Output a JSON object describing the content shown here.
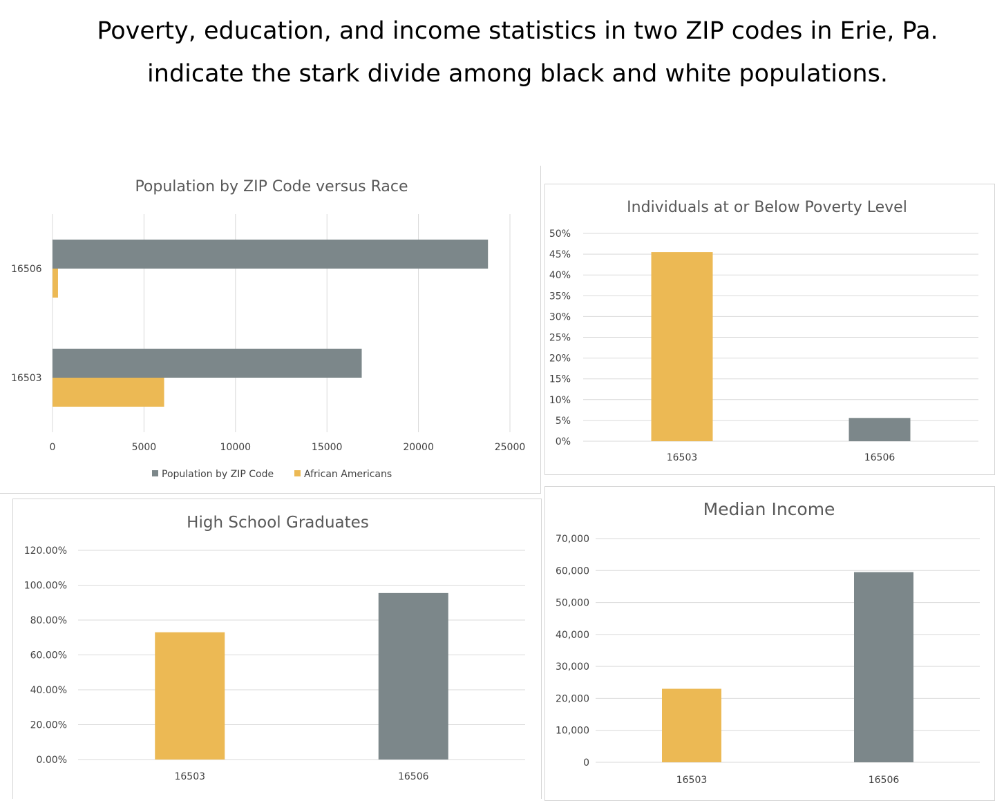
{
  "headline": "Poverty, education, and income statistics in two ZIP codes in Erie, Pa. indicate the stark divide among black and white populations.",
  "colors": {
    "gray": "#7c878a",
    "gold": "#ecb954",
    "grid": "#d9d9d9"
  },
  "chart_data": [
    {
      "type": "bar",
      "orientation": "horizontal",
      "title": "Population by ZIP Code versus Race",
      "categories": [
        "16506",
        "16503"
      ],
      "series": [
        {
          "name": "Population by ZIP Code",
          "values": [
            23800,
            16900
          ],
          "color": "#7c878a"
        },
        {
          "name": "African Americans",
          "values": [
            300,
            6100
          ],
          "color": "#ecb954"
        }
      ],
      "xlim": [
        0,
        25000
      ],
      "x_ticks": [
        "0",
        "5000",
        "10000",
        "15000",
        "20000",
        "25000"
      ],
      "legend": "bottom",
      "grid": true
    },
    {
      "type": "bar",
      "title": "Individuals at or Below Poverty Level",
      "categories": [
        "16503",
        "16506"
      ],
      "values": [
        0.455,
        0.056
      ],
      "colors": [
        "#ecb954",
        "#7c878a"
      ],
      "ylim": [
        0,
        0.5
      ],
      "y_ticks": [
        "0%",
        "5%",
        "10%",
        "15%",
        "20%",
        "25%",
        "30%",
        "35%",
        "40%",
        "45%",
        "50%"
      ],
      "grid": true
    },
    {
      "type": "bar",
      "title": "High School Graduates",
      "categories": [
        "16503",
        "16506"
      ],
      "values": [
        0.73,
        0.955
      ],
      "colors": [
        "#ecb954",
        "#7c878a"
      ],
      "ylim": [
        0,
        1.2
      ],
      "y_ticks": [
        "0.00%",
        "20.00%",
        "40.00%",
        "60.00%",
        "80.00%",
        "100.00%",
        "120.00%"
      ],
      "grid": true
    },
    {
      "type": "bar",
      "title": "Median Income",
      "categories": [
        "16503",
        "16506"
      ],
      "values": [
        23000,
        59500
      ],
      "colors": [
        "#ecb954",
        "#7c878a"
      ],
      "ylim": [
        0,
        70000
      ],
      "y_ticks": [
        "0",
        "10,000",
        "20,000",
        "30,000",
        "40,000",
        "50,000",
        "60,000",
        "70,000"
      ],
      "grid": true
    }
  ]
}
